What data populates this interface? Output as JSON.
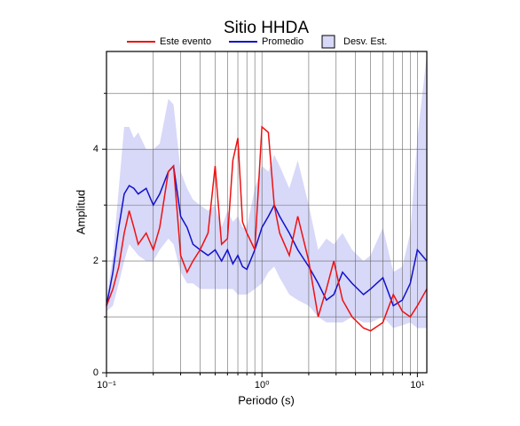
{
  "chart_data": {
    "type": "line",
    "title": "Sitio HHDA",
    "xlabel": "Periodo (s)",
    "ylabel": "Amplitud",
    "xscale": "log",
    "xlim": [
      0.1,
      11.5
    ],
    "ylim": [
      0,
      5.75
    ],
    "xticks": [
      {
        "value": 0.1,
        "label": "10⁻¹"
      },
      {
        "value": 1,
        "label": "10⁰"
      },
      {
        "value": 10,
        "label": "10¹"
      }
    ],
    "xminor": [
      0.2,
      0.3,
      0.4,
      0.5,
      0.6,
      0.7,
      0.8,
      0.9,
      2,
      3,
      4,
      5,
      6,
      7,
      8,
      9
    ],
    "yticks": [
      0,
      2,
      4
    ],
    "yminor": [
      1,
      3,
      5
    ],
    "grid": true,
    "x": [
      0.1,
      0.11,
      0.12,
      0.13,
      0.14,
      0.15,
      0.16,
      0.18,
      0.2,
      0.22,
      0.25,
      0.27,
      0.3,
      0.33,
      0.36,
      0.4,
      0.45,
      0.5,
      0.55,
      0.6,
      0.65,
      0.7,
      0.75,
      0.8,
      0.9,
      1.0,
      1.1,
      1.2,
      1.3,
      1.5,
      1.7,
      2.0,
      2.3,
      2.6,
      2.9,
      3.3,
      3.8,
      4.5,
      5,
      6,
      7,
      8,
      9,
      10,
      11.5
    ],
    "series": [
      {
        "name": "Este evento",
        "color": "#ee1111",
        "values": [
          1.2,
          1.5,
          1.9,
          2.5,
          2.9,
          2.6,
          2.3,
          2.5,
          2.2,
          2.6,
          3.6,
          3.7,
          2.1,
          1.8,
          2.0,
          2.2,
          2.5,
          3.7,
          2.3,
          2.4,
          3.8,
          4.2,
          2.7,
          2.5,
          2.2,
          4.4,
          4.3,
          3.0,
          2.5,
          2.1,
          2.8,
          2.0,
          1.0,
          1.5,
          2.0,
          1.3,
          1.0,
          0.8,
          0.75,
          0.9,
          1.4,
          1.1,
          1.0,
          1.2,
          1.5
        ]
      },
      {
        "name": "Promedio",
        "color": "#1111cc",
        "values": [
          1.2,
          1.8,
          2.6,
          3.2,
          3.35,
          3.3,
          3.2,
          3.3,
          3.0,
          3.2,
          3.6,
          3.7,
          2.8,
          2.6,
          2.3,
          2.2,
          2.1,
          2.2,
          2.0,
          2.2,
          1.95,
          2.1,
          1.9,
          1.85,
          2.2,
          2.6,
          2.8,
          3.0,
          2.8,
          2.5,
          2.2,
          1.9,
          1.6,
          1.3,
          1.4,
          1.8,
          1.6,
          1.4,
          1.5,
          1.7,
          1.2,
          1.3,
          1.6,
          2.2,
          2.0
        ]
      }
    ],
    "band": {
      "name": "Desv. Est.",
      "color": "#d8d8f8",
      "lower": [
        1.1,
        1.2,
        1.6,
        2.0,
        2.3,
        2.2,
        2.1,
        2.0,
        2.0,
        2.2,
        2.4,
        2.3,
        1.8,
        1.6,
        1.6,
        1.5,
        1.5,
        1.5,
        1.5,
        1.5,
        1.5,
        1.4,
        1.4,
        1.4,
        1.5,
        1.6,
        1.8,
        1.9,
        1.7,
        1.4,
        1.3,
        1.2,
        1.0,
        0.9,
        0.9,
        0.9,
        1.0,
        0.9,
        0.9,
        1.0,
        0.8,
        0.85,
        0.9,
        0.8,
        0.8
      ],
      "upper": [
        1.3,
        2.1,
        3.3,
        4.4,
        4.4,
        4.2,
        4.3,
        4.0,
        4.0,
        4.1,
        4.9,
        4.8,
        3.6,
        3.3,
        3.1,
        3.0,
        2.9,
        3.0,
        2.6,
        2.9,
        2.7,
        2.8,
        2.6,
        2.6,
        3.3,
        3.7,
        3.6,
        3.9,
        3.7,
        3.3,
        3.8,
        3.0,
        2.2,
        2.4,
        2.3,
        2.5,
        2.2,
        2.0,
        2.1,
        2.6,
        1.8,
        1.9,
        2.5,
        4.2,
        5.7
      ]
    }
  }
}
